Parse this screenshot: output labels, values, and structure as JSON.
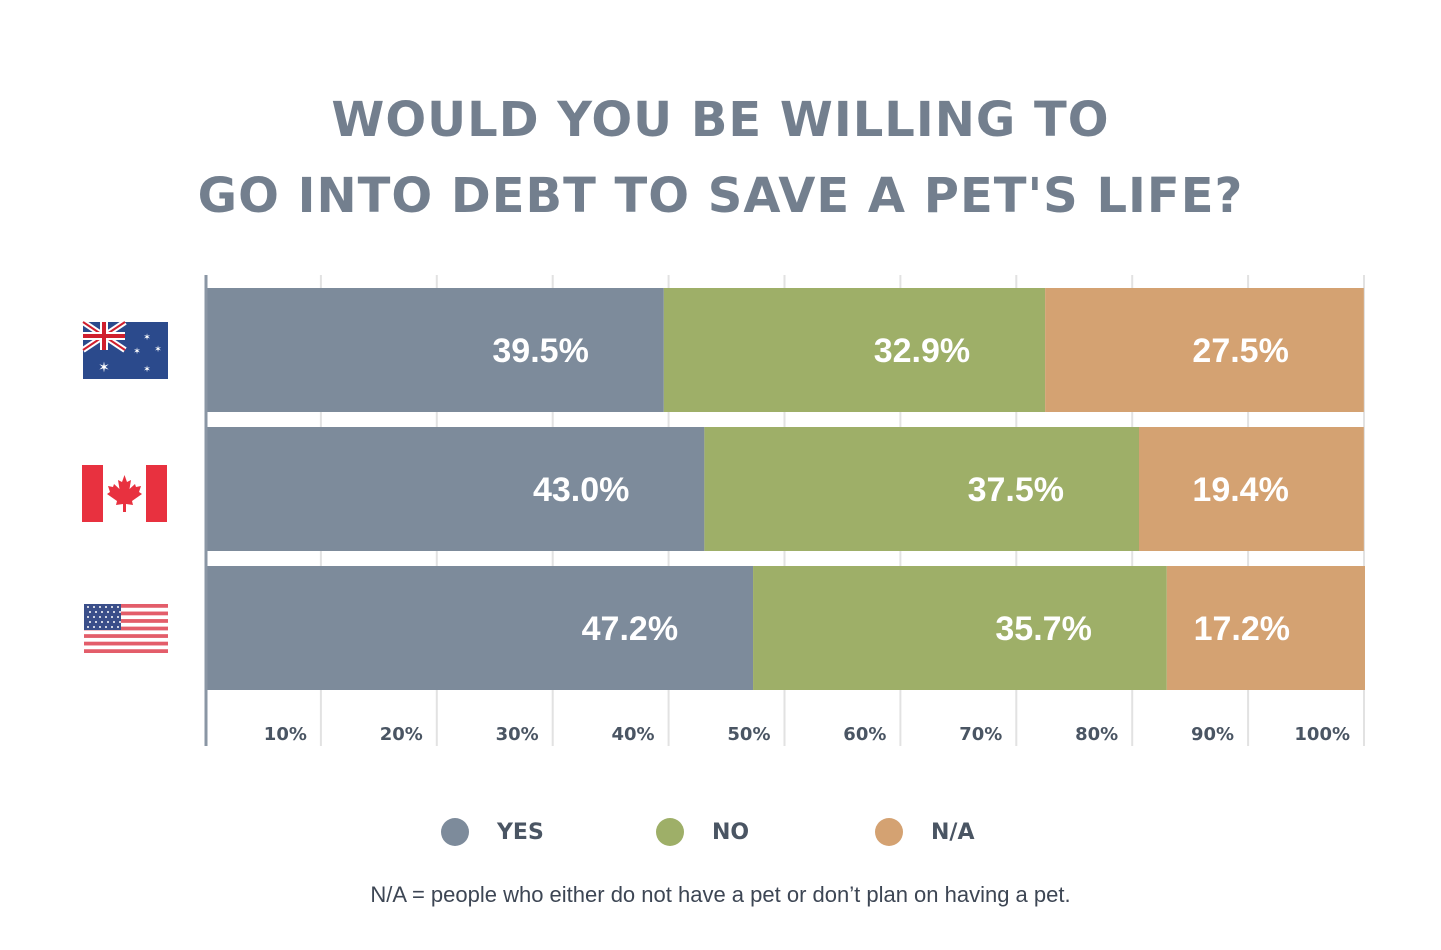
{
  "title": {
    "line1": "WOULD YOU BE WILLING TO",
    "line2": "GO INTO DEBT TO SAVE A PET'S LIFE?"
  },
  "colors": {
    "yes": "#7d8b9b",
    "no": "#9eaf68",
    "na": "#d4a272",
    "gridline": "#e2e2e2",
    "axis": "#8a96a4"
  },
  "chart_data": {
    "type": "bar",
    "orientation": "horizontal",
    "stacked": true,
    "categories": [
      "Australia",
      "Canada",
      "United States"
    ],
    "category_icons": [
      "australia-flag-icon",
      "canada-flag-icon",
      "us-flag-icon"
    ],
    "series": [
      {
        "name": "YES",
        "values": [
          39.5,
          43.0,
          47.2
        ],
        "labels": [
          "39.5%",
          "43.0%",
          "47.2%"
        ]
      },
      {
        "name": "NO",
        "values": [
          32.9,
          37.5,
          35.7
        ],
        "labels": [
          "32.9%",
          "37.5%",
          "35.7%"
        ]
      },
      {
        "name": "N/A",
        "values": [
          27.5,
          19.4,
          17.2
        ],
        "labels": [
          "27.5%",
          "19.4%",
          "17.2%"
        ]
      }
    ],
    "xlim": [
      0,
      100
    ],
    "x_ticks": [
      "10%",
      "20%",
      "30%",
      "40%",
      "50%",
      "60%",
      "70%",
      "80%",
      "90%",
      "100%"
    ],
    "grid": true,
    "legend_position": "bottom"
  },
  "legend": {
    "yes": "YES",
    "no": "NO",
    "na": "N/A"
  },
  "footnote": "N/A = people who either do not have a pet or don’t plan on having a pet."
}
